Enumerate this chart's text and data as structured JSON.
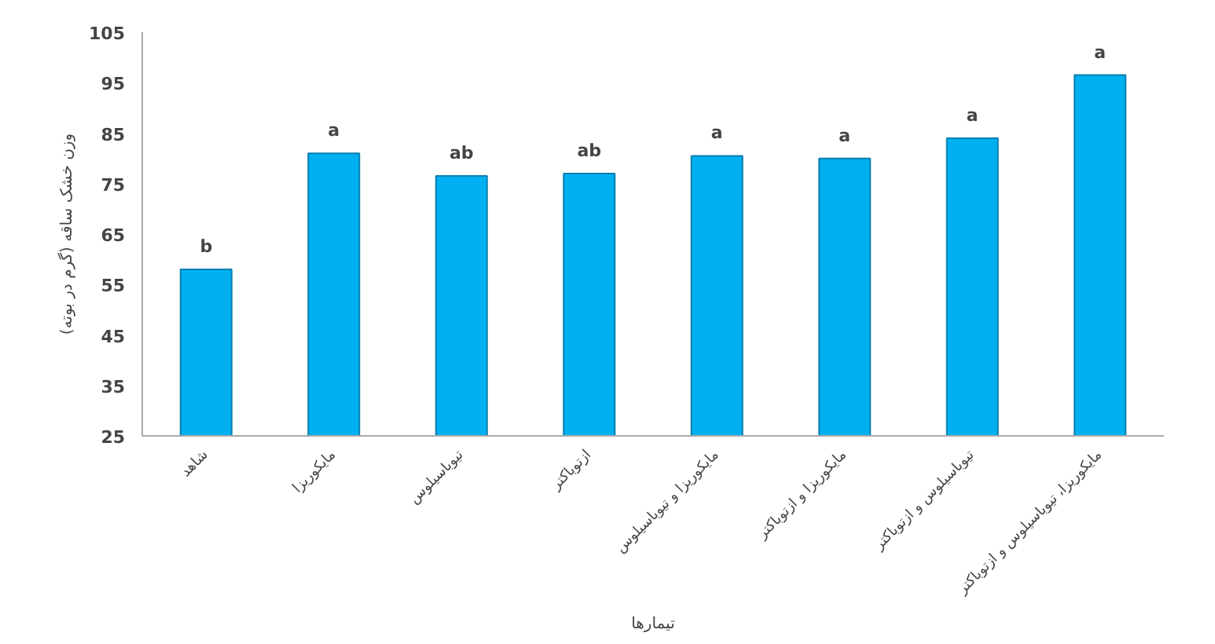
{
  "chart_data": {
    "type": "bar",
    "xlabel": "تیمارها",
    "ylabel": "وزن خشک ساقه (گرم در بوته)",
    "categories": [
      "شاهد",
      "مایکوریزا",
      "تیوباسیلوس",
      "ازتوباکتر",
      "مایکوریزا و تیوباسیلوس",
      "مایکوریزا و ازتوباکتر",
      "تیوباسیلوس و ازتوباکتر",
      "مایکوریزا، تیوباسیلوس و ازتوباکتر"
    ],
    "values": [
      58,
      81,
      76.5,
      77,
      80.5,
      80,
      84,
      96.5
    ],
    "color": "#00b0f0",
    "ylim": [
      25,
      105
    ],
    "yticks": [
      25,
      35,
      45,
      55,
      65,
      75,
      85,
      95,
      105
    ],
    "grid": false,
    "annotations": [
      {
        "text": "b",
        "x": "شاهد",
        "y": 58
      },
      {
        "text": "a",
        "x": "مایکوریزا",
        "y": 81
      },
      {
        "text": "ab",
        "x": "تیوباسیلوس",
        "y": 76.5
      },
      {
        "text": "ab",
        "x": "ازتوباکتر",
        "y": 77
      },
      {
        "text": "a",
        "x": "مایکوریزا و تیوباسیلوس",
        "y": 80.5
      },
      {
        "text": "a",
        "x": "مایکوریزا و ازتوباکتر",
        "y": 80
      },
      {
        "text": "a",
        "x": "تیوباسیلوس و ازتوباکتر",
        "y": 84
      },
      {
        "text": "a",
        "x": "مایکوریزا، تیوباسیلوس و ازتوباکتر",
        "y": 96.5
      }
    ]
  }
}
